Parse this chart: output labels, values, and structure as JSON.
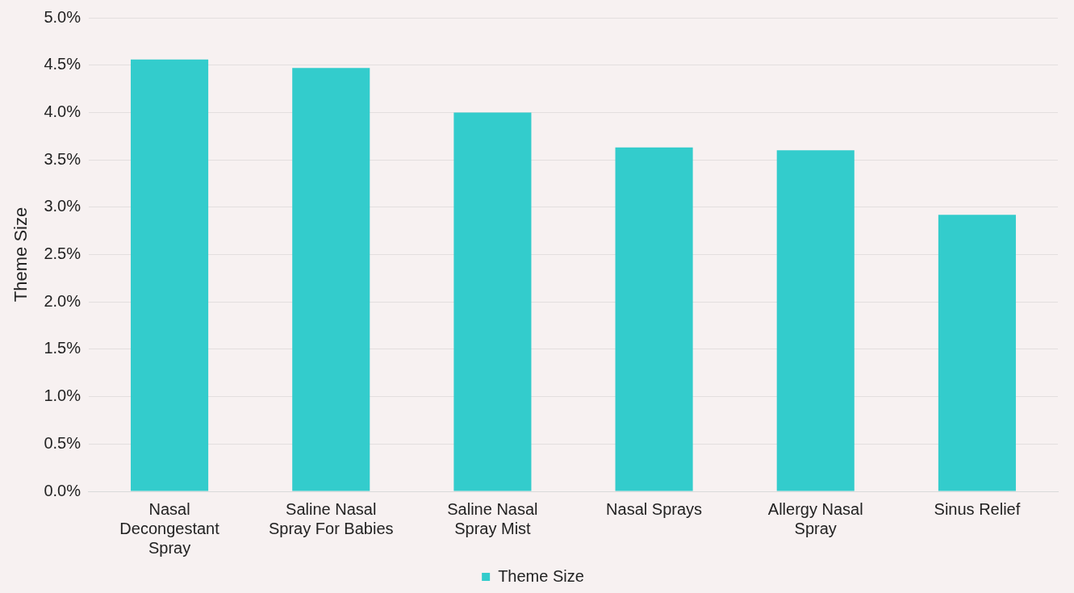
{
  "chart_data": {
    "type": "bar",
    "ylabel": "Theme Size",
    "categories": [
      "Nasal Decongestant Spray",
      "Saline Nasal Spray For Babies",
      "Saline Nasal Spray Mist",
      "Nasal Sprays",
      "Allergy Nasal Spray",
      "Sinus Relief"
    ],
    "series": [
      {
        "name": "Theme Size",
        "color": "#33cccc",
        "values": [
          4.56,
          4.47,
          4.0,
          3.63,
          3.6,
          2.92
        ]
      }
    ],
    "ylim": [
      0,
      5
    ],
    "yticks": [
      {
        "value": 0,
        "label": "0.0%"
      },
      {
        "value": 0.5,
        "label": "0.5%"
      },
      {
        "value": 1,
        "label": "1.0%"
      },
      {
        "value": 1.5,
        "label": "1.5%"
      },
      {
        "value": 2,
        "label": "2.0%"
      },
      {
        "value": 2.5,
        "label": "2.5%"
      },
      {
        "value": 3,
        "label": "3.0%"
      },
      {
        "value": 3.5,
        "label": "3.5%"
      },
      {
        "value": 4,
        "label": "4.0%"
      },
      {
        "value": 4.5,
        "label": "4.5%"
      },
      {
        "value": 5,
        "label": "5.0%"
      }
    ],
    "grid": "y",
    "legend": "bottom"
  }
}
